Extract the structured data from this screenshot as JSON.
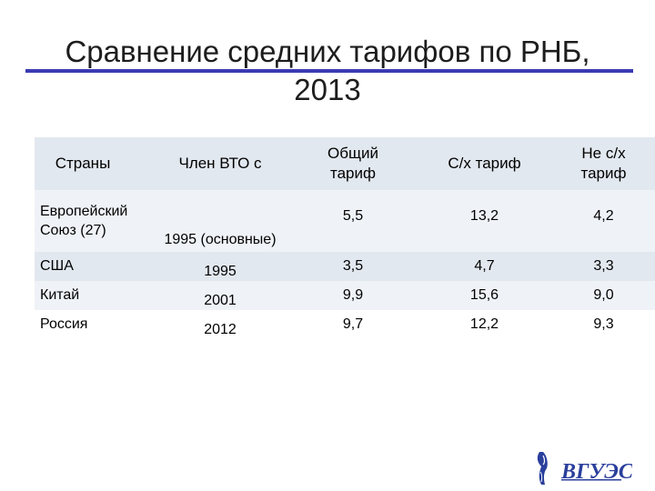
{
  "slide": {
    "title_line1": "Сравнение средних тарифов по РНБ,",
    "title_line2": "2013"
  },
  "table": {
    "headers": [
      "Страны",
      "Член ВТО с",
      "Общий тариф",
      "С/х тариф",
      "Не с/х тариф"
    ],
    "header_lines": {
      "general": [
        "Общий",
        "тариф"
      ],
      "non_agri": [
        "Не с/х",
        "тариф"
      ]
    },
    "rows": [
      {
        "country_line1": "Европейский",
        "country_line2": "Союз (27)",
        "member": "1995 (основные)",
        "general": "5,5",
        "agri": "13,2",
        "non_agri": "4,2"
      },
      {
        "country": "США",
        "member": "1995",
        "general": "3,5",
        "agri": "4,7",
        "non_agri": "3,3"
      },
      {
        "country": "Китай",
        "member": "2001",
        "general": "9,9",
        "agri": "15,6",
        "non_agri": "9,0"
      },
      {
        "country": "Россия",
        "member": "2012",
        "general": "9,7",
        "agri": "12,2",
        "non_agri": "9,3"
      }
    ]
  },
  "logo": {
    "text": "ВГУЭС",
    "color": "#2a3f9c"
  }
}
